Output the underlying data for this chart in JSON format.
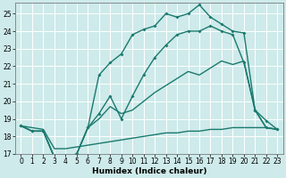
{
  "xlabel": "Humidex (Indice chaleur)",
  "bg_color": "#ceeaea",
  "grid_color": "#b0d8d8",
  "line_color": "#1a7a6e",
  "ylim": [
    17,
    25.6
  ],
  "xlim": [
    -0.5,
    23.5
  ],
  "yticks": [
    17,
    18,
    19,
    20,
    21,
    22,
    23,
    24,
    25
  ],
  "xticks": [
    0,
    1,
    2,
    3,
    4,
    5,
    6,
    7,
    8,
    9,
    10,
    11,
    12,
    13,
    14,
    15,
    16,
    17,
    18,
    19,
    20,
    21,
    22,
    23
  ],
  "curve1": {
    "x": [
      0,
      1,
      2,
      3,
      4,
      5,
      6,
      7,
      8,
      9,
      10,
      11,
      12,
      13,
      14,
      15,
      16,
      17,
      18,
      19,
      20,
      21,
      22,
      23
    ],
    "y": [
      18.6,
      18.5,
      18.4,
      17.3,
      17.3,
      17.4,
      17.5,
      17.6,
      17.7,
      17.8,
      17.9,
      18.0,
      18.1,
      18.2,
      18.2,
      18.3,
      18.3,
      18.4,
      18.4,
      18.5,
      18.5,
      18.5,
      18.5,
      18.4
    ]
  },
  "curve2": {
    "x": [
      0,
      1,
      2,
      3,
      4,
      5,
      6,
      7,
      8,
      9,
      10,
      11,
      12,
      13,
      14,
      15,
      16,
      17,
      18,
      19,
      20,
      21,
      22,
      23
    ],
    "y": [
      18.6,
      18.3,
      18.3,
      16.8,
      16.8,
      17.0,
      18.5,
      19.0,
      19.7,
      19.3,
      19.5,
      20.0,
      20.5,
      20.9,
      21.3,
      21.7,
      21.5,
      21.9,
      22.3,
      22.1,
      22.3,
      19.5,
      18.5,
      18.4
    ]
  },
  "curve3": {
    "x": [
      0,
      1,
      2,
      3,
      4,
      5,
      6,
      7,
      8,
      9,
      10,
      11,
      12,
      13,
      14,
      15,
      16,
      17,
      18,
      19,
      20,
      21,
      22,
      23
    ],
    "y": [
      18.6,
      18.3,
      18.3,
      16.8,
      16.8,
      17.0,
      18.5,
      19.3,
      20.3,
      19.0,
      20.3,
      21.5,
      22.5,
      23.2,
      23.8,
      24.0,
      24.0,
      24.3,
      24.0,
      23.8,
      22.2,
      19.5,
      18.5,
      18.4
    ]
  },
  "curve4": {
    "x": [
      0,
      1,
      2,
      3,
      4,
      5,
      6,
      7,
      8,
      9,
      10,
      11,
      12,
      13,
      14,
      15,
      16,
      17,
      18,
      19,
      20,
      21,
      22,
      23
    ],
    "y": [
      18.6,
      18.3,
      18.3,
      16.8,
      16.8,
      17.0,
      18.5,
      21.5,
      22.2,
      22.7,
      23.8,
      24.1,
      24.3,
      25.0,
      24.8,
      25.0,
      25.5,
      24.8,
      24.4,
      24.0,
      23.9,
      19.5,
      18.9,
      18.4
    ]
  }
}
